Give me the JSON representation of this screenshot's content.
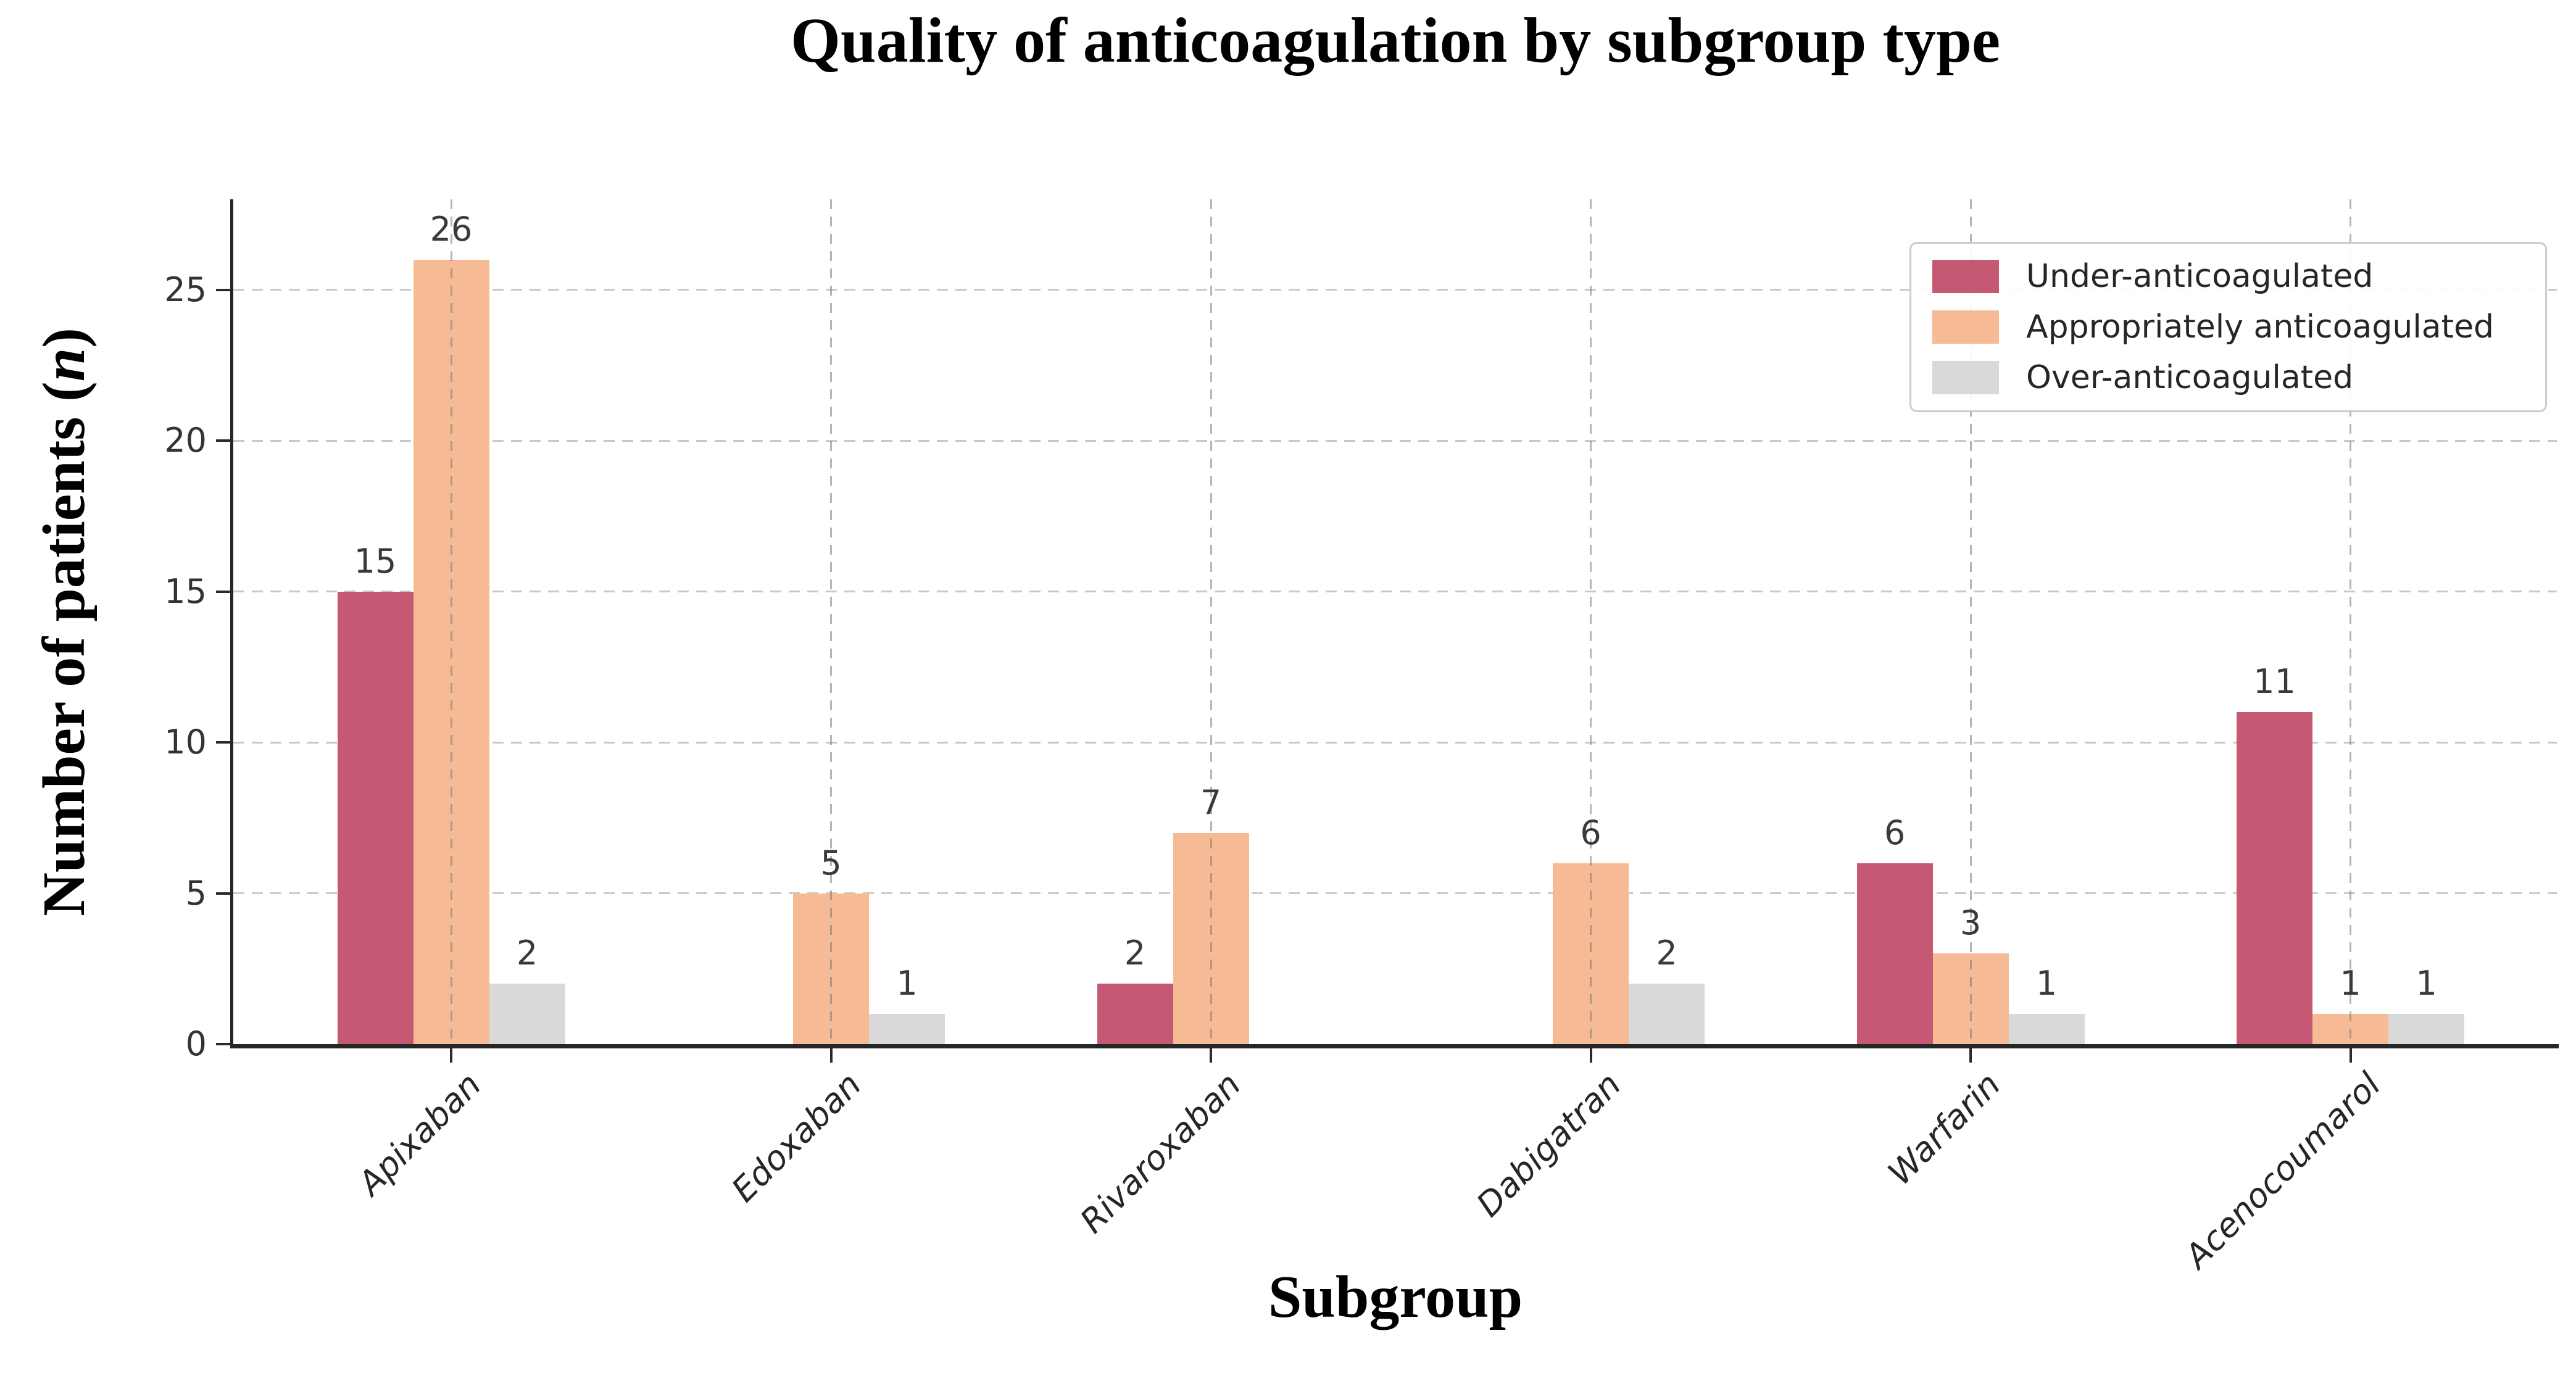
{
  "chart_data": {
    "type": "bar",
    "title": "Quality of anticoagulation by subgroup type",
    "xlabel": "Subgroup",
    "ylabel_prefix": "Number of patients (",
    "ylabel_italic": "n",
    "ylabel_suffix": ")",
    "categories": [
      "Apixaban",
      "Edoxaban",
      "Rivaroxaban",
      "Dabigatran",
      "Warfarin",
      "Acenocoumarol"
    ],
    "series": [
      {
        "name": "Under-anticoagulated",
        "color": "#c55973",
        "values": [
          15,
          0,
          2,
          0,
          6,
          11
        ]
      },
      {
        "name": "Appropriately anticoagulated",
        "color": "#f6bb95",
        "values": [
          26,
          5,
          7,
          6,
          3,
          1
        ]
      },
      {
        "name": "Over-anticoagulated",
        "color": "#d9d9d9",
        "values": [
          2,
          1,
          0,
          2,
          1,
          1
        ]
      }
    ],
    "yticks": [
      0,
      5,
      10,
      15,
      20,
      25
    ],
    "ylim": [
      0,
      28
    ],
    "grid": "dashed",
    "legend_position": "upper right",
    "bar_value_labels": true,
    "axis_color": "#262626",
    "grid_color": "#c9c9c9",
    "value_label_color": "#3a3a3a"
  }
}
